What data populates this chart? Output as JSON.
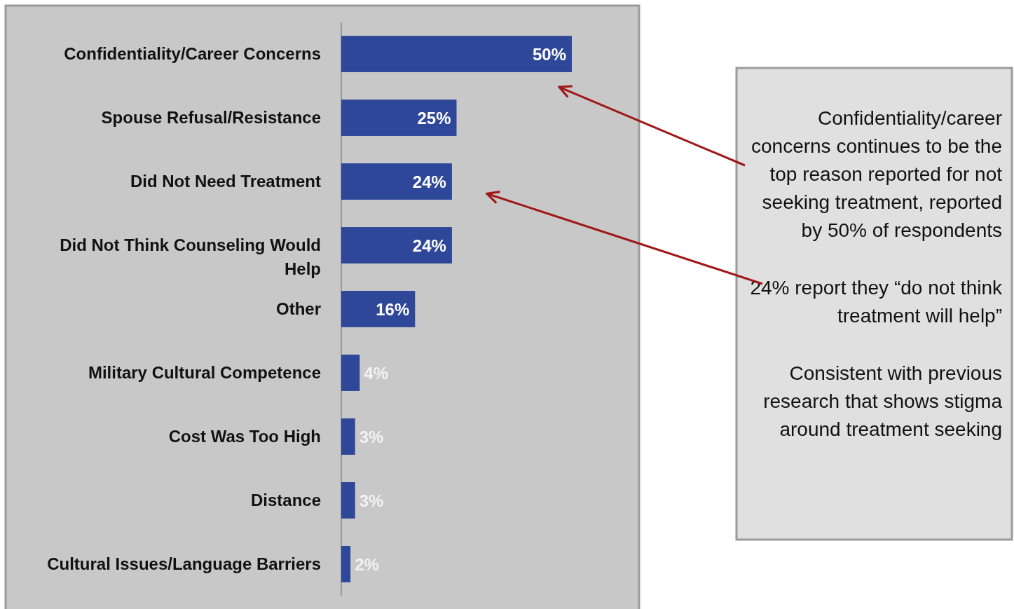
{
  "chart_data": {
    "type": "bar",
    "orientation": "horizontal",
    "categories": [
      "Confidentiality/Career Concerns",
      "Spouse Refusal/Resistance",
      "Did Not Need Treatment",
      "Did Not Think Counseling Would Help",
      "Other",
      "Military Cultural Competence",
      "Cost Was Too High",
      "Distance",
      "Cultural Issues/Language Barriers"
    ],
    "values": [
      50,
      25,
      24,
      24,
      16,
      4,
      3,
      3,
      2
    ],
    "value_labels": [
      "50%",
      "25%",
      "24%",
      "24%",
      "16%",
      "4%",
      "3%",
      "3%",
      "2%"
    ],
    "color": "#2e4799",
    "xlim": [
      0,
      50
    ],
    "annotations": [
      "Confidentiality/career concerns continues to be the top reason reported for not seeking treatment, reported by 50% of respondents",
      "24% report they “do not think treatment will help”",
      "Consistent with previous research that shows stigma around treatment seeking"
    ]
  }
}
